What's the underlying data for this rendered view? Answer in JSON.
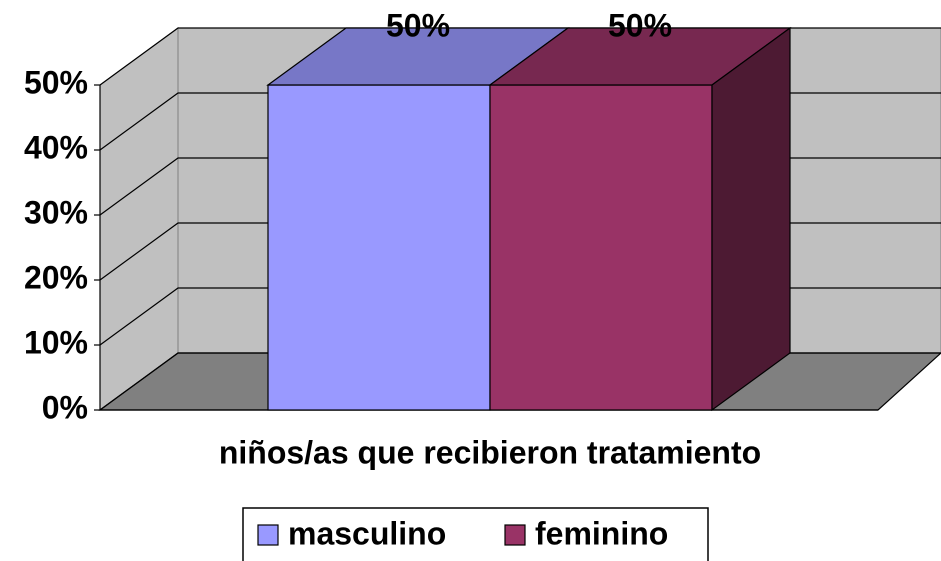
{
  "chart_data": {
    "type": "bar3d",
    "categories": [
      "niños/as que recibieron tratamiento"
    ],
    "series": [
      {
        "name": "masculino",
        "color": "#9999ff",
        "values": [
          50
        ],
        "value_labels": [
          "50%"
        ]
      },
      {
        "name": "feminino",
        "color": "#993366",
        "values": [
          50
        ],
        "value_labels": [
          "50%"
        ]
      }
    ],
    "ylim": [
      0,
      50
    ],
    "yticks": [
      {
        "value": 0,
        "label": "0%"
      },
      {
        "value": 10,
        "label": "10%"
      },
      {
        "value": 20,
        "label": "20%"
      },
      {
        "value": 30,
        "label": "30%"
      },
      {
        "value": 40,
        "label": "40%"
      },
      {
        "value": 50,
        "label": "50%"
      }
    ],
    "grid": true,
    "legend": "bottom"
  }
}
